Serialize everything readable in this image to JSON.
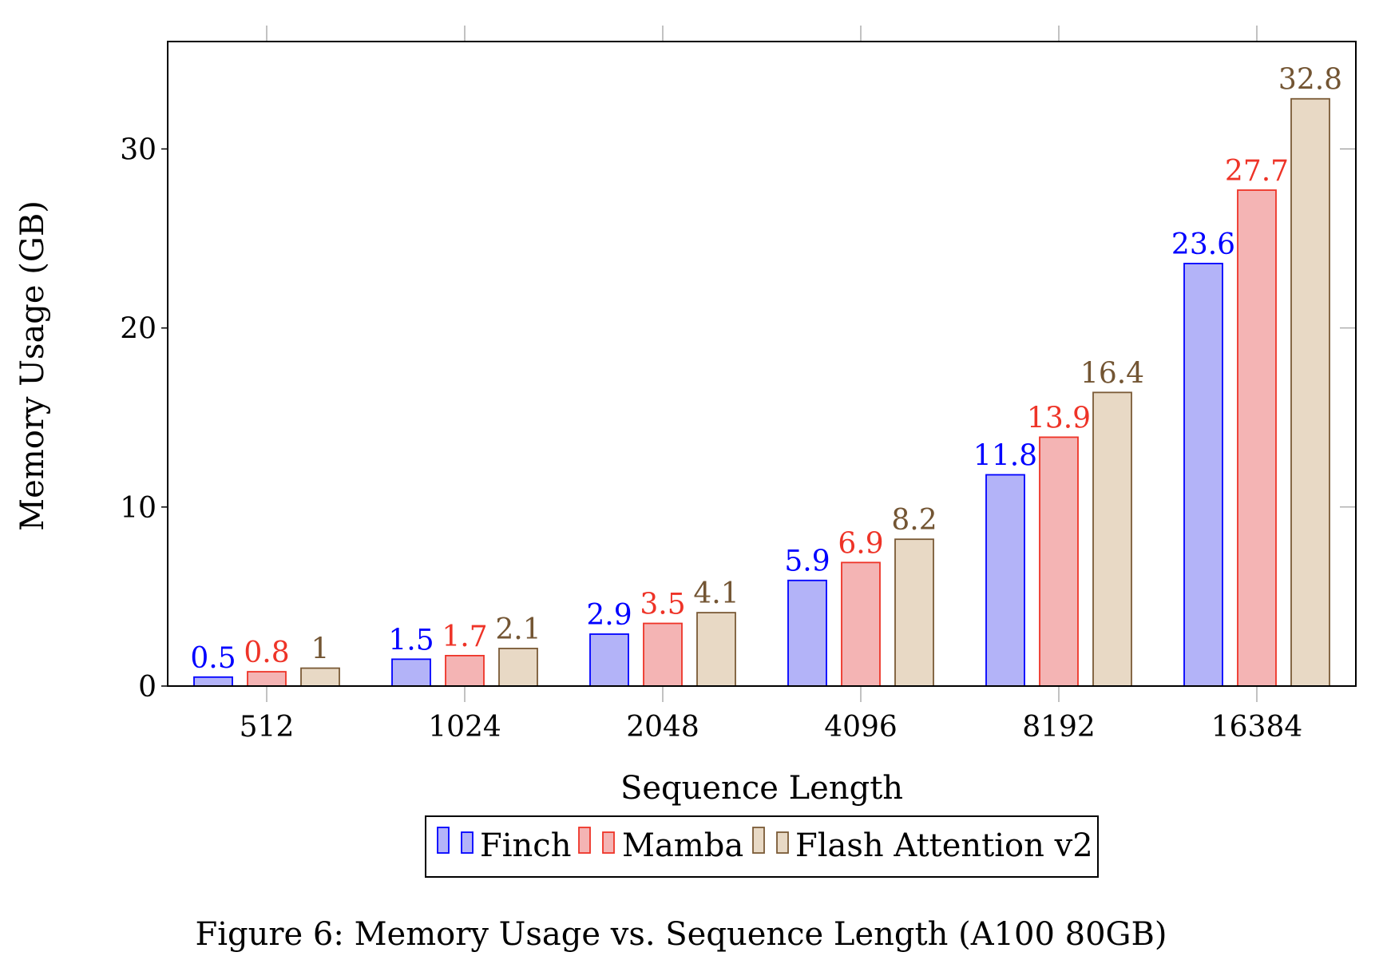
{
  "chart_data": {
    "type": "bar",
    "title": "",
    "xlabel": "Sequence Length",
    "ylabel": "Memory Usage (GB)",
    "categories": [
      "512",
      "1024",
      "2048",
      "4096",
      "8192",
      "16384"
    ],
    "ylim": [
      0,
      36
    ],
    "yticks": [
      0,
      10,
      20,
      30
    ],
    "grid": false,
    "legend_placement": "bottom",
    "series": [
      {
        "name": "Finch",
        "values": [
          0.5,
          1.5,
          2.9,
          5.9,
          11.8,
          23.6
        ],
        "stroke": "#0000ff",
        "fill": "#b3b3f8",
        "label_color": "#0000ff"
      },
      {
        "name": "Mamba",
        "values": [
          0.8,
          1.7,
          3.5,
          6.9,
          13.9,
          27.7
        ],
        "stroke": "#ee3327",
        "fill": "#f4b4b4",
        "label_color": "#ee3327"
      },
      {
        "name": "Flash Attention v2",
        "values": [
          1,
          2.1,
          4.1,
          8.2,
          16.4,
          32.8
        ],
        "stroke": "#7a5a36",
        "fill": "#e8d9c5",
        "label_color": "#735533"
      }
    ]
  },
  "caption": "Figure 6: Memory Usage vs. Sequence Length (A100 80GB)"
}
